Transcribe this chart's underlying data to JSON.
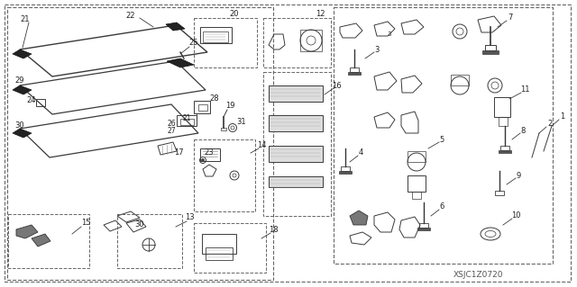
{
  "bg_color": "#ffffff",
  "lc": "#3a3a3a",
  "dc": "#666666",
  "tc": "#222222",
  "watermark": "XSJC1Z0720",
  "fig_width": 6.4,
  "fig_height": 3.19,
  "dpi": 100
}
